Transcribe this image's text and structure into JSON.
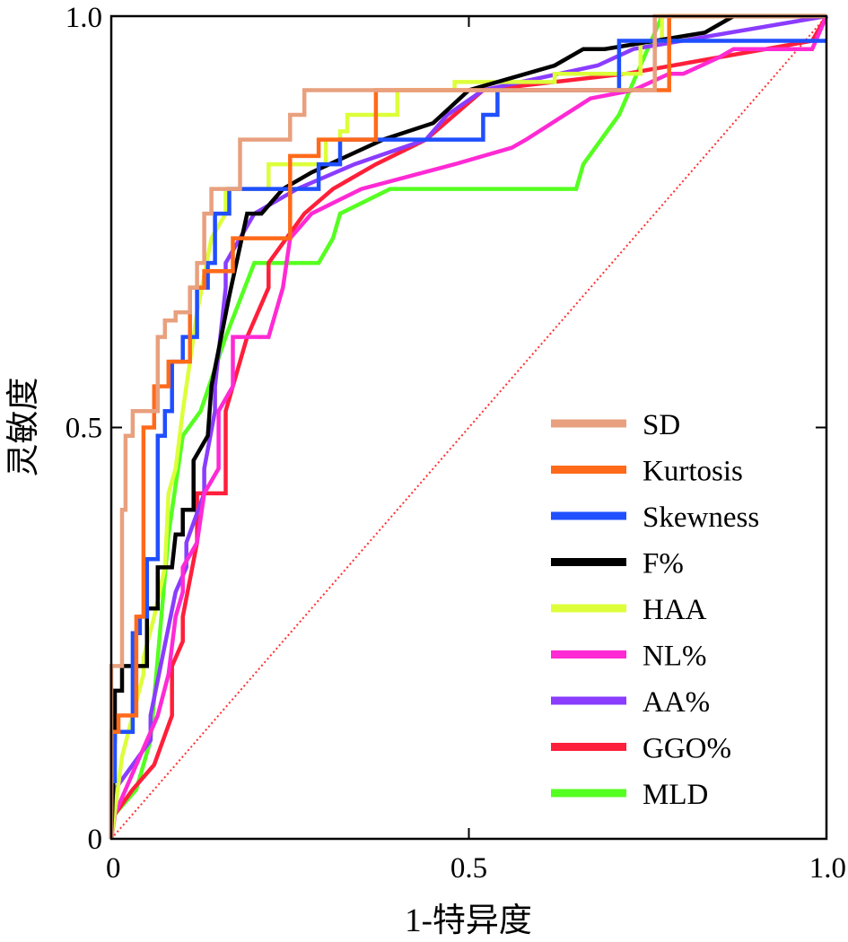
{
  "chart_data": {
    "type": "line",
    "title": "",
    "xlabel": "1-特异度",
    "ylabel": "灵敏度",
    "xlim": [
      0,
      1
    ],
    "ylim": [
      0,
      1
    ],
    "x_ticks": [
      0,
      0.5,
      1.0
    ],
    "x_tick_labels": [
      "0",
      "0.5",
      "1.0"
    ],
    "y_ticks": [
      0,
      0.5,
      1.0
    ],
    "y_tick_labels": [
      "0",
      "0.5",
      "1.0"
    ],
    "grid": false,
    "legend_position": "bottom-right",
    "reference_line": {
      "name": "reference-diagonal",
      "color": "#ff3030",
      "style": "dotted",
      "x": [
        0,
        1
      ],
      "y": [
        0,
        1
      ]
    },
    "series": [
      {
        "name": "SD",
        "color": "#e8a07e",
        "x": [
          0,
          0,
          0.015,
          0.015,
          0.02,
          0.02,
          0.03,
          0.03,
          0.065,
          0.065,
          0.075,
          0.075,
          0.09,
          0.09,
          0.11,
          0.11,
          0.12,
          0.12,
          0.13,
          0.13,
          0.14,
          0.14,
          0.18,
          0.18,
          0.25,
          0.25,
          0.27,
          0.27,
          0.4,
          0.4,
          0.75,
          0.75,
          0.76,
          0.76,
          1.0
        ],
        "y": [
          0,
          0.21,
          0.21,
          0.4,
          0.4,
          0.49,
          0.49,
          0.52,
          0.52,
          0.61,
          0.61,
          0.63,
          0.63,
          0.64,
          0.64,
          0.67,
          0.67,
          0.7,
          0.7,
          0.76,
          0.76,
          0.79,
          0.79,
          0.85,
          0.85,
          0.88,
          0.88,
          0.91,
          0.91,
          0.91,
          0.91,
          0.91,
          0.91,
          1.0,
          1.0
        ]
      },
      {
        "name": "Kurtosis",
        "color": "#ff6a1a",
        "x": [
          0,
          0,
          0.01,
          0.01,
          0.035,
          0.035,
          0.045,
          0.045,
          0.06,
          0.06,
          0.08,
          0.08,
          0.11,
          0.11,
          0.13,
          0.13,
          0.17,
          0.17,
          0.25,
          0.25,
          0.29,
          0.29,
          0.37,
          0.37,
          0.55,
          0.55,
          0.69,
          0.69,
          0.78,
          0.78,
          1.0
        ],
        "y": [
          0,
          0.13,
          0.13,
          0.15,
          0.15,
          0.27,
          0.27,
          0.5,
          0.5,
          0.55,
          0.55,
          0.58,
          0.58,
          0.67,
          0.67,
          0.69,
          0.69,
          0.73,
          0.73,
          0.83,
          0.83,
          0.85,
          0.85,
          0.91,
          0.91,
          0.91,
          0.91,
          0.91,
          0.91,
          1.0,
          1.0
        ]
      },
      {
        "name": "Skewness",
        "color": "#1f4fff",
        "x": [
          0,
          0,
          0.005,
          0.005,
          0.03,
          0.03,
          0.04,
          0.04,
          0.05,
          0.05,
          0.065,
          0.065,
          0.075,
          0.075,
          0.085,
          0.085,
          0.1,
          0.1,
          0.12,
          0.12,
          0.135,
          0.135,
          0.145,
          0.145,
          0.165,
          0.165,
          0.19,
          0.19,
          0.29,
          0.29,
          0.32,
          0.32,
          0.49,
          0.49,
          0.52,
          0.52,
          0.54,
          0.54,
          0.71,
          0.71,
          1.0
        ],
        "y": [
          0,
          0.07,
          0.07,
          0.13,
          0.13,
          0.25,
          0.25,
          0.27,
          0.27,
          0.34,
          0.34,
          0.49,
          0.49,
          0.52,
          0.52,
          0.58,
          0.58,
          0.61,
          0.61,
          0.67,
          0.67,
          0.7,
          0.7,
          0.76,
          0.76,
          0.79,
          0.79,
          0.79,
          0.79,
          0.82,
          0.82,
          0.85,
          0.85,
          0.85,
          0.85,
          0.88,
          0.88,
          0.91,
          0.91,
          0.97,
          0.97
        ]
      },
      {
        "name": "F%",
        "color": "#000000",
        "x": [
          0,
          0.005,
          0.005,
          0.015,
          0.015,
          0.05,
          0.05,
          0.065,
          0.065,
          0.085,
          0.09,
          0.1,
          0.1,
          0.115,
          0.115,
          0.135,
          0.14,
          0.165,
          0.19,
          0.21,
          0.21,
          0.24,
          0.28,
          0.38,
          0.45,
          0.5,
          0.58,
          0.62,
          0.66,
          0.69,
          0.83,
          0.87,
          1.0
        ],
        "y": [
          0,
          0.12,
          0.18,
          0.18,
          0.21,
          0.21,
          0.28,
          0.28,
          0.33,
          0.33,
          0.37,
          0.37,
          0.4,
          0.4,
          0.46,
          0.49,
          0.55,
          0.66,
          0.76,
          0.76,
          0.76,
          0.79,
          0.81,
          0.85,
          0.87,
          0.91,
          0.93,
          0.94,
          0.96,
          0.96,
          0.98,
          1.0,
          1.0
        ]
      },
      {
        "name": "HAA",
        "color": "#dcff3a",
        "x": [
          0,
          0.015,
          0.03,
          0.045,
          0.045,
          0.06,
          0.075,
          0.08,
          0.09,
          0.1,
          0.12,
          0.14,
          0.16,
          0.16,
          0.19,
          0.22,
          0.22,
          0.3,
          0.3,
          0.32,
          0.32,
          0.33,
          0.33,
          0.4,
          0.4,
          0.48,
          0.48,
          0.6,
          0.62,
          0.62,
          0.74,
          0.74,
          0.77,
          0.77,
          1.0
        ],
        "y": [
          0,
          0.1,
          0.15,
          0.2,
          0.22,
          0.27,
          0.33,
          0.42,
          0.45,
          0.52,
          0.64,
          0.73,
          0.76,
          0.79,
          0.79,
          0.79,
          0.82,
          0.82,
          0.85,
          0.85,
          0.86,
          0.86,
          0.88,
          0.88,
          0.91,
          0.91,
          0.92,
          0.92,
          0.92,
          0.93,
          0.93,
          0.97,
          0.97,
          1.0,
          1.0
        ]
      },
      {
        "name": "NL%",
        "color": "#ff2ad4",
        "x": [
          0,
          0.005,
          0.035,
          0.065,
          0.08,
          0.09,
          0.1,
          0.1,
          0.12,
          0.13,
          0.15,
          0.15,
          0.17,
          0.17,
          0.22,
          0.24,
          0.25,
          0.28,
          0.35,
          0.48,
          0.56,
          0.58,
          0.67,
          0.73,
          0.78,
          0.8,
          0.85,
          0.87,
          0.98,
          1.0
        ],
        "y": [
          0,
          0.03,
          0.09,
          0.15,
          0.2,
          0.27,
          0.3,
          0.33,
          0.36,
          0.42,
          0.45,
          0.52,
          0.55,
          0.61,
          0.61,
          0.67,
          0.73,
          0.76,
          0.79,
          0.82,
          0.84,
          0.85,
          0.9,
          0.91,
          0.93,
          0.93,
          0.95,
          0.96,
          0.96,
          1.0
        ]
      },
      {
        "name": "AA%",
        "color": "#8a3cff",
        "x": [
          0,
          0.005,
          0.03,
          0.055,
          0.055,
          0.09,
          0.09,
          0.105,
          0.105,
          0.13,
          0.13,
          0.145,
          0.145,
          0.16,
          0.16,
          0.2,
          0.2,
          0.26,
          0.26,
          0.34,
          0.34,
          0.44,
          0.44,
          0.47,
          0.47,
          0.52,
          0.52,
          0.68,
          0.68,
          0.73,
          0.73,
          1.0
        ],
        "y": [
          0,
          0.06,
          0.09,
          0.12,
          0.15,
          0.3,
          0.3,
          0.33,
          0.36,
          0.42,
          0.45,
          0.52,
          0.55,
          0.67,
          0.7,
          0.76,
          0.76,
          0.79,
          0.79,
          0.82,
          0.82,
          0.85,
          0.85,
          0.88,
          0.88,
          0.91,
          0.91,
          0.94,
          0.94,
          0.96,
          0.96,
          1.0
        ]
      },
      {
        "name": "GGO%",
        "color": "#ff1f3a",
        "x": [
          0,
          0.005,
          0.005,
          0.03,
          0.03,
          0.06,
          0.06,
          0.085,
          0.085,
          0.1,
          0.1,
          0.12,
          0.12,
          0.16,
          0.16,
          0.19,
          0.19,
          0.22,
          0.22,
          0.27,
          0.27,
          0.31,
          0.31,
          0.37,
          0.37,
          0.44,
          0.44,
          0.52,
          0.52,
          0.72,
          0.72,
          0.98,
          1.0
        ],
        "y": [
          0,
          0.03,
          0.03,
          0.06,
          0.06,
          0.09,
          0.09,
          0.15,
          0.21,
          0.24,
          0.27,
          0.36,
          0.42,
          0.42,
          0.52,
          0.61,
          0.61,
          0.67,
          0.7,
          0.76,
          0.76,
          0.79,
          0.79,
          0.82,
          0.82,
          0.85,
          0.85,
          0.91,
          0.91,
          0.93,
          0.93,
          0.97,
          1.0
        ]
      },
      {
        "name": "MLD",
        "color": "#55ff20",
        "x": [
          0,
          0.005,
          0.005,
          0.035,
          0.035,
          0.055,
          0.055,
          0.08,
          0.08,
          0.1,
          0.1,
          0.125,
          0.125,
          0.16,
          0.16,
          0.2,
          0.2,
          0.29,
          0.29,
          0.31,
          0.31,
          0.32,
          0.32,
          0.39,
          0.39,
          0.65,
          0.65,
          0.66,
          0.66,
          0.71,
          0.71,
          0.77,
          0.77,
          1.0
        ],
        "y": [
          0,
          0.03,
          0.03,
          0.06,
          0.06,
          0.12,
          0.12,
          0.37,
          0.37,
          0.49,
          0.49,
          0.52,
          0.52,
          0.61,
          0.61,
          0.7,
          0.7,
          0.7,
          0.7,
          0.73,
          0.73,
          0.76,
          0.76,
          0.79,
          0.79,
          0.79,
          0.79,
          0.82,
          0.82,
          0.88,
          0.88,
          1.0,
          1.0,
          1.0
        ]
      }
    ]
  }
}
